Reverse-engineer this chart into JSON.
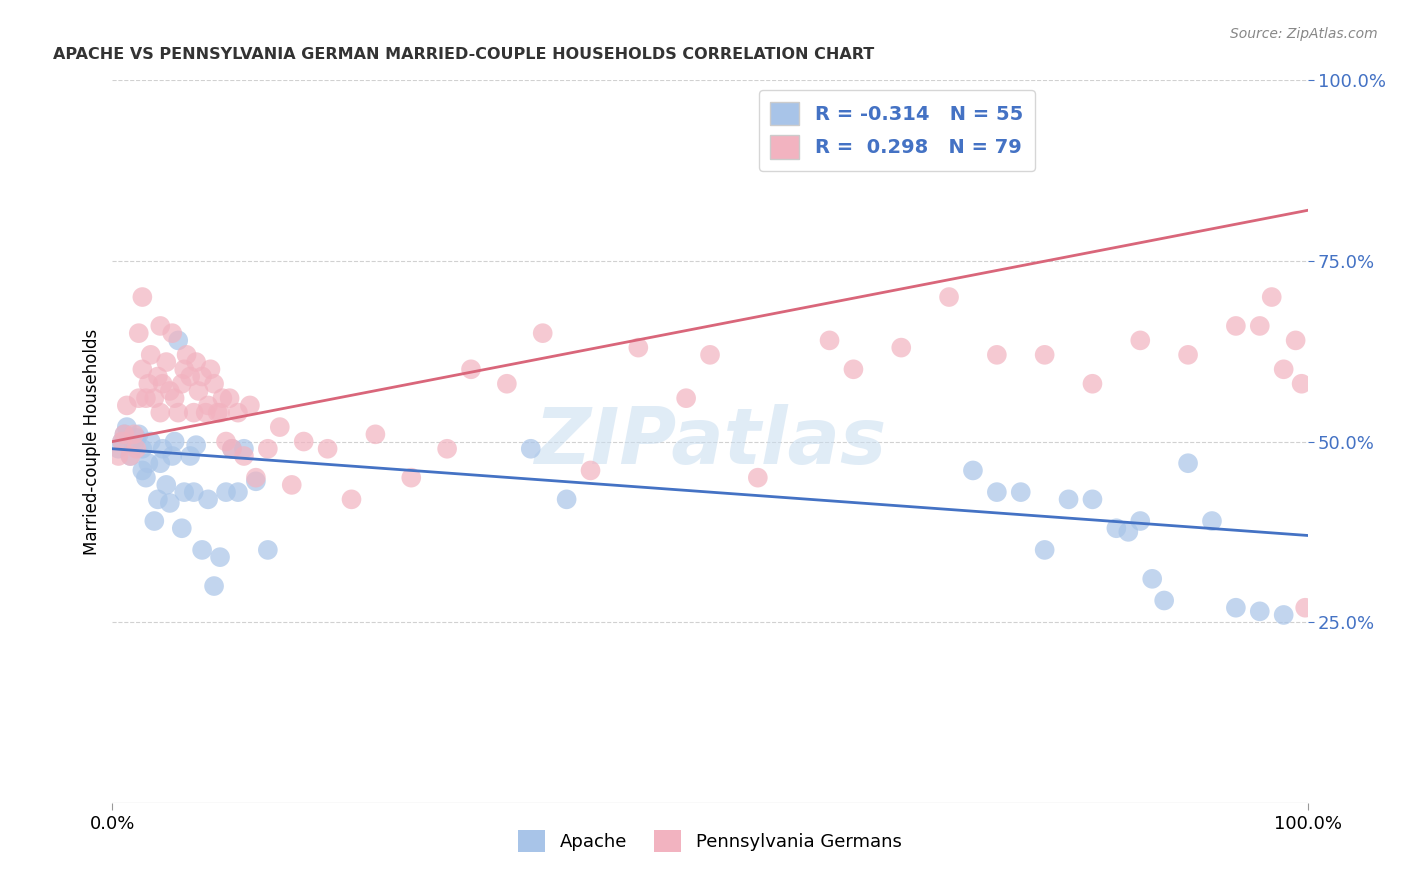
{
  "title": "APACHE VS PENNSYLVANIA GERMAN MARRIED-COUPLE HOUSEHOLDS CORRELATION CHART",
  "source": "Source: ZipAtlas.com",
  "ylabel": "Married-couple Households",
  "xlim": [
    0,
    1
  ],
  "ylim": [
    0,
    1
  ],
  "yticks": [
    0.25,
    0.5,
    0.75,
    1.0
  ],
  "ytick_labels": [
    "25.0%",
    "50.0%",
    "75.0%",
    "100.0%"
  ],
  "apache_R": -0.314,
  "apache_N": 55,
  "pg_R": 0.298,
  "pg_N": 79,
  "apache_color": "#a8c4e8",
  "pg_color": "#f2b3c0",
  "apache_line_color": "#4472c4",
  "pg_line_color": "#d9667a",
  "background_color": "#ffffff",
  "apache_x": [
    0.005,
    0.008,
    0.01,
    0.012,
    0.015,
    0.018,
    0.02,
    0.022,
    0.025,
    0.025,
    0.028,
    0.03,
    0.032,
    0.035,
    0.038,
    0.04,
    0.042,
    0.045,
    0.048,
    0.05,
    0.052,
    0.055,
    0.058,
    0.06,
    0.065,
    0.068,
    0.07,
    0.075,
    0.08,
    0.085,
    0.09,
    0.095,
    0.1,
    0.105,
    0.11,
    0.12,
    0.13,
    0.35,
    0.38,
    0.72,
    0.74,
    0.76,
    0.78,
    0.8,
    0.82,
    0.84,
    0.85,
    0.86,
    0.87,
    0.88,
    0.9,
    0.92,
    0.94,
    0.96,
    0.98
  ],
  "apache_y": [
    0.49,
    0.5,
    0.51,
    0.52,
    0.48,
    0.495,
    0.505,
    0.51,
    0.46,
    0.49,
    0.45,
    0.47,
    0.5,
    0.39,
    0.42,
    0.47,
    0.49,
    0.44,
    0.415,
    0.48,
    0.5,
    0.64,
    0.38,
    0.43,
    0.48,
    0.43,
    0.495,
    0.35,
    0.42,
    0.3,
    0.34,
    0.43,
    0.49,
    0.43,
    0.49,
    0.445,
    0.35,
    0.49,
    0.42,
    0.46,
    0.43,
    0.43,
    0.35,
    0.42,
    0.42,
    0.38,
    0.375,
    0.39,
    0.31,
    0.28,
    0.47,
    0.39,
    0.27,
    0.265,
    0.26
  ],
  "pg_x": [
    0.005,
    0.008,
    0.01,
    0.012,
    0.015,
    0.018,
    0.02,
    0.022,
    0.022,
    0.025,
    0.025,
    0.028,
    0.03,
    0.032,
    0.035,
    0.038,
    0.04,
    0.04,
    0.042,
    0.045,
    0.048,
    0.05,
    0.052,
    0.055,
    0.058,
    0.06,
    0.062,
    0.065,
    0.068,
    0.07,
    0.072,
    0.075,
    0.078,
    0.08,
    0.082,
    0.085,
    0.088,
    0.09,
    0.092,
    0.095,
    0.098,
    0.1,
    0.105,
    0.11,
    0.115,
    0.12,
    0.13,
    0.14,
    0.15,
    0.16,
    0.18,
    0.2,
    0.22,
    0.25,
    0.28,
    0.3,
    0.33,
    0.36,
    0.4,
    0.44,
    0.48,
    0.5,
    0.54,
    0.6,
    0.62,
    0.66,
    0.7,
    0.74,
    0.78,
    0.82,
    0.86,
    0.9,
    0.94,
    0.96,
    0.97,
    0.98,
    0.99,
    0.995,
    0.998
  ],
  "pg_y": [
    0.48,
    0.5,
    0.51,
    0.55,
    0.48,
    0.51,
    0.49,
    0.56,
    0.65,
    0.6,
    0.7,
    0.56,
    0.58,
    0.62,
    0.56,
    0.59,
    0.54,
    0.66,
    0.58,
    0.61,
    0.57,
    0.65,
    0.56,
    0.54,
    0.58,
    0.6,
    0.62,
    0.59,
    0.54,
    0.61,
    0.57,
    0.59,
    0.54,
    0.55,
    0.6,
    0.58,
    0.54,
    0.54,
    0.56,
    0.5,
    0.56,
    0.49,
    0.54,
    0.48,
    0.55,
    0.45,
    0.49,
    0.52,
    0.44,
    0.5,
    0.49,
    0.42,
    0.51,
    0.45,
    0.49,
    0.6,
    0.58,
    0.65,
    0.46,
    0.63,
    0.56,
    0.62,
    0.45,
    0.64,
    0.6,
    0.63,
    0.7,
    0.62,
    0.62,
    0.58,
    0.64,
    0.62,
    0.66,
    0.66,
    0.7,
    0.6,
    0.64,
    0.58,
    0.27
  ]
}
